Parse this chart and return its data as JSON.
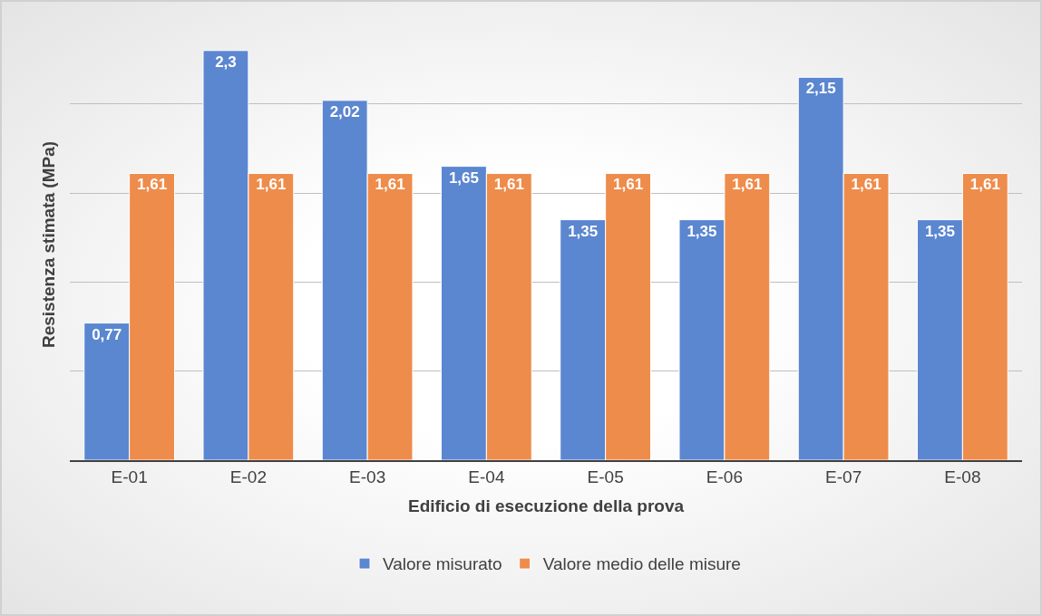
{
  "chart_data": {
    "type": "bar",
    "xlabel": "Edificio di esecuzione della prova",
    "ylabel": "Resistenza stimata (MPa)",
    "categories": [
      "E-01",
      "E-02",
      "E-03",
      "E-04",
      "E-05",
      "E-06",
      "E-07",
      "E-08"
    ],
    "series": [
      {
        "name": "Valore misurato",
        "color": "#5b86d0",
        "values": [
          0.77,
          2.3,
          2.02,
          1.65,
          1.35,
          1.35,
          2.15,
          1.35
        ],
        "value_labels": [
          "0,77",
          "2,3",
          "2,02",
          "1,65",
          "1,35",
          "1,35",
          "2,15",
          "1,35"
        ]
      },
      {
        "name": "Valore medio delle misure",
        "color": "#ee8c4c",
        "values": [
          1.61,
          1.61,
          1.61,
          1.61,
          1.61,
          1.61,
          1.61,
          1.61
        ],
        "value_labels": [
          "1,61",
          "1,61",
          "1,61",
          "1,61",
          "1,61",
          "1,61",
          "1,61",
          "1,61"
        ]
      }
    ],
    "yticks": [
      {
        "value": 0.5,
        "label": null
      },
      {
        "value": 1,
        "label": null
      },
      {
        "value": 1.5,
        "label": null
      },
      {
        "value": 2,
        "label": null
      }
    ],
    "grid": "y",
    "legend": "bottom",
    "tick_labels": "x"
  }
}
